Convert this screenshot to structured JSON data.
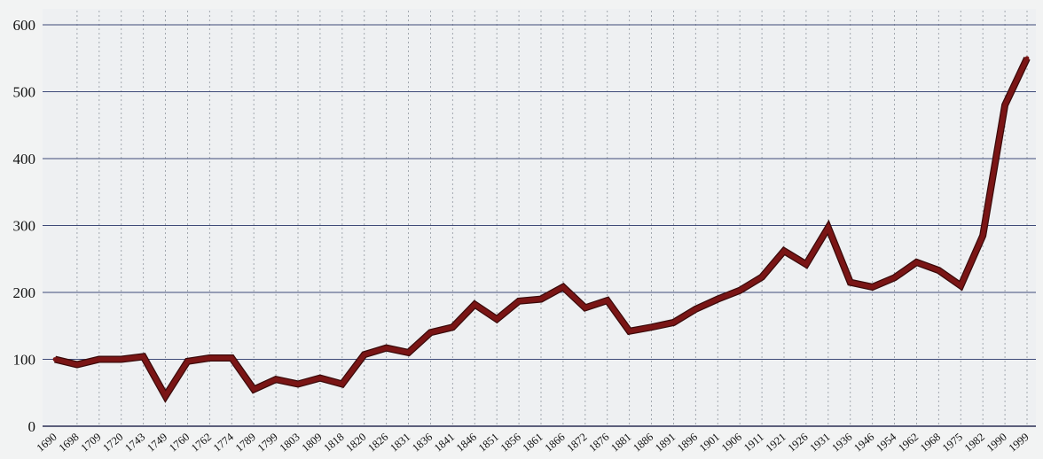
{
  "chart_data": {
    "type": "line",
    "title": "",
    "xlabel": "",
    "ylabel": "",
    "ylim": [
      0,
      600
    ],
    "yticks": [
      0,
      100,
      200,
      300,
      400,
      500,
      600
    ],
    "grid": {
      "horizontal": "solid",
      "vertical": "dotted"
    },
    "categories": [
      "1690",
      "1698",
      "1709",
      "1720",
      "1743",
      "1749",
      "1760",
      "1762",
      "1774",
      "1789",
      "1799",
      "1803",
      "1809",
      "1818",
      "1820",
      "1826",
      "1831",
      "1836",
      "1841",
      "1846",
      "1851",
      "1856",
      "1861",
      "1866",
      "1872",
      "1876",
      "1881",
      "1886",
      "1891",
      "1896",
      "1901",
      "1906",
      "1911",
      "1921",
      "1926",
      "1931",
      "1936",
      "1946",
      "1954",
      "1962",
      "1968",
      "1975",
      "1982",
      "1990",
      "1999"
    ],
    "series": [
      {
        "values": [
          100,
          92,
          100,
          100,
          104,
          45,
          97,
          102,
          102,
          55,
          70,
          63,
          72,
          63,
          107,
          117,
          110,
          140,
          148,
          182,
          160,
          187,
          190,
          208,
          177,
          188,
          142,
          148,
          155,
          175,
          190,
          203,
          223,
          262,
          242,
          297,
          215,
          208,
          222,
          245,
          233,
          210,
          285,
          480,
          550
        ],
        "color": "#7a1515"
      }
    ]
  }
}
